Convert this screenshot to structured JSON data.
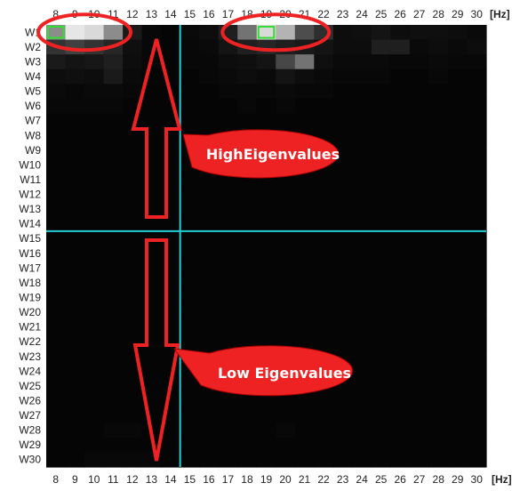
{
  "chart_data": {
    "type": "heatmap",
    "title": "",
    "x_unit": "[Hz]",
    "x_categories": [
      "8",
      "9",
      "10",
      "11",
      "12",
      "13",
      "14",
      "15",
      "16",
      "17",
      "18",
      "19",
      "20",
      "21",
      "22",
      "23",
      "24",
      "25",
      "26",
      "27",
      "28",
      "29",
      "30"
    ],
    "y_categories": [
      "W1",
      "W2",
      "W3",
      "W4",
      "W5",
      "W6",
      "W7",
      "W8",
      "W9",
      "W10",
      "W11",
      "W12",
      "W13",
      "W14",
      "W15",
      "W16",
      "W17",
      "W18",
      "W19",
      "W20",
      "W21",
      "W22",
      "W23",
      "W24",
      "W25",
      "W26",
      "W27",
      "W28",
      "W29",
      "W30"
    ],
    "value_range": [
      0,
      1
    ],
    "colormap": "black-to-white grayscale",
    "values": [
      [
        0.55,
        0.9,
        0.85,
        0.55,
        0.1,
        0.03,
        0.02,
        0.04,
        0.05,
        0.12,
        0.45,
        0.85,
        0.7,
        0.3,
        0.18,
        0.05,
        0.06,
        0.08,
        0.05,
        0.06,
        0.06,
        0.05,
        0.04
      ],
      [
        0.2,
        0.25,
        0.2,
        0.15,
        0.06,
        0.03,
        0.02,
        0.03,
        0.04,
        0.08,
        0.12,
        0.15,
        0.12,
        0.1,
        0.08,
        0.05,
        0.05,
        0.12,
        0.12,
        0.04,
        0.05,
        0.04,
        0.05
      ],
      [
        0.1,
        0.08,
        0.09,
        0.12,
        0.05,
        0.03,
        0.02,
        0.03,
        0.03,
        0.05,
        0.06,
        0.08,
        0.28,
        0.45,
        0.06,
        0.04,
        0.04,
        0.04,
        0.03,
        0.03,
        0.04,
        0.03,
        0.03
      ],
      [
        0.05,
        0.06,
        0.05,
        0.1,
        0.04,
        0.02,
        0.02,
        0.02,
        0.03,
        0.04,
        0.05,
        0.04,
        0.08,
        0.05,
        0.04,
        0.03,
        0.03,
        0.03,
        0.02,
        0.02,
        0.03,
        0.02,
        0.02
      ],
      [
        0.04,
        0.03,
        0.04,
        0.04,
        0.03,
        0.02,
        0.02,
        0.02,
        0.02,
        0.03,
        0.03,
        0.03,
        0.04,
        0.03,
        0.03,
        0.02,
        0.02,
        0.02,
        0.02,
        0.02,
        0.02,
        0.02,
        0.02
      ],
      [
        0.03,
        0.03,
        0.03,
        0.03,
        0.02,
        0.02,
        0.02,
        0.02,
        0.02,
        0.02,
        0.03,
        0.02,
        0.03,
        0.02,
        0.02,
        0.02,
        0.02,
        0.02,
        0.02,
        0.02,
        0.02,
        0.02,
        0.02
      ],
      [
        0.02,
        0.02,
        0.02,
        0.02,
        0.02,
        0.02,
        0.02,
        0.02,
        0.02,
        0.02,
        0.02,
        0.02,
        0.02,
        0.02,
        0.02,
        0.02,
        0.02,
        0.02,
        0.02,
        0.02,
        0.02,
        0.02,
        0.02
      ],
      [
        0.02,
        0.02,
        0.02,
        0.02,
        0.02,
        0.02,
        0.02,
        0.02,
        0.02,
        0.02,
        0.02,
        0.02,
        0.02,
        0.02,
        0.02,
        0.02,
        0.02,
        0.02,
        0.02,
        0.02,
        0.02,
        0.02,
        0.02
      ],
      [
        0.02,
        0.02,
        0.02,
        0.02,
        0.02,
        0.02,
        0.02,
        0.02,
        0.02,
        0.02,
        0.02,
        0.02,
        0.02,
        0.02,
        0.02,
        0.02,
        0.02,
        0.02,
        0.02,
        0.02,
        0.02,
        0.02,
        0.02
      ],
      [
        0.02,
        0.02,
        0.02,
        0.02,
        0.02,
        0.02,
        0.02,
        0.02,
        0.02,
        0.02,
        0.02,
        0.02,
        0.02,
        0.02,
        0.02,
        0.02,
        0.02,
        0.02,
        0.02,
        0.02,
        0.02,
        0.02,
        0.02
      ],
      [
        0.02,
        0.02,
        0.02,
        0.02,
        0.02,
        0.02,
        0.02,
        0.02,
        0.02,
        0.02,
        0.02,
        0.02,
        0.02,
        0.02,
        0.02,
        0.02,
        0.02,
        0.02,
        0.02,
        0.02,
        0.02,
        0.02,
        0.02
      ],
      [
        0.02,
        0.02,
        0.02,
        0.02,
        0.02,
        0.02,
        0.02,
        0.02,
        0.02,
        0.02,
        0.02,
        0.02,
        0.02,
        0.02,
        0.02,
        0.02,
        0.02,
        0.02,
        0.02,
        0.02,
        0.02,
        0.02,
        0.02
      ],
      [
        0.02,
        0.02,
        0.02,
        0.02,
        0.02,
        0.02,
        0.02,
        0.02,
        0.02,
        0.02,
        0.02,
        0.02,
        0.02,
        0.02,
        0.02,
        0.02,
        0.02,
        0.02,
        0.02,
        0.02,
        0.02,
        0.02,
        0.02
      ],
      [
        0.02,
        0.02,
        0.02,
        0.02,
        0.02,
        0.02,
        0.02,
        0.02,
        0.02,
        0.02,
        0.02,
        0.02,
        0.02,
        0.02,
        0.02,
        0.02,
        0.02,
        0.02,
        0.02,
        0.02,
        0.02,
        0.02,
        0.02
      ],
      [
        0.02,
        0.02,
        0.02,
        0.02,
        0.02,
        0.02,
        0.02,
        0.02,
        0.02,
        0.02,
        0.02,
        0.02,
        0.02,
        0.02,
        0.02,
        0.02,
        0.02,
        0.02,
        0.02,
        0.02,
        0.02,
        0.02,
        0.02
      ],
      [
        0.02,
        0.02,
        0.02,
        0.02,
        0.02,
        0.02,
        0.02,
        0.02,
        0.02,
        0.02,
        0.02,
        0.02,
        0.02,
        0.02,
        0.02,
        0.02,
        0.02,
        0.02,
        0.02,
        0.02,
        0.02,
        0.02,
        0.02
      ],
      [
        0.02,
        0.02,
        0.02,
        0.02,
        0.02,
        0.02,
        0.02,
        0.02,
        0.02,
        0.02,
        0.02,
        0.02,
        0.02,
        0.02,
        0.02,
        0.02,
        0.02,
        0.02,
        0.02,
        0.02,
        0.02,
        0.02,
        0.02
      ],
      [
        0.02,
        0.02,
        0.02,
        0.02,
        0.02,
        0.02,
        0.02,
        0.02,
        0.02,
        0.02,
        0.02,
        0.02,
        0.02,
        0.02,
        0.02,
        0.02,
        0.02,
        0.02,
        0.02,
        0.02,
        0.02,
        0.02,
        0.02
      ],
      [
        0.02,
        0.02,
        0.02,
        0.02,
        0.02,
        0.02,
        0.02,
        0.02,
        0.02,
        0.02,
        0.02,
        0.02,
        0.02,
        0.02,
        0.02,
        0.02,
        0.02,
        0.02,
        0.02,
        0.02,
        0.02,
        0.02,
        0.02
      ],
      [
        0.02,
        0.02,
        0.02,
        0.02,
        0.02,
        0.02,
        0.02,
        0.02,
        0.02,
        0.02,
        0.02,
        0.02,
        0.02,
        0.02,
        0.02,
        0.02,
        0.02,
        0.02,
        0.02,
        0.02,
        0.02,
        0.02,
        0.02
      ],
      [
        0.02,
        0.02,
        0.02,
        0.02,
        0.02,
        0.02,
        0.02,
        0.02,
        0.02,
        0.02,
        0.02,
        0.02,
        0.02,
        0.02,
        0.02,
        0.02,
        0.02,
        0.02,
        0.02,
        0.02,
        0.02,
        0.02,
        0.02
      ],
      [
        0.02,
        0.02,
        0.02,
        0.02,
        0.02,
        0.02,
        0.02,
        0.02,
        0.02,
        0.02,
        0.02,
        0.02,
        0.02,
        0.02,
        0.02,
        0.02,
        0.02,
        0.02,
        0.02,
        0.02,
        0.02,
        0.02,
        0.02
      ],
      [
        0.02,
        0.02,
        0.02,
        0.02,
        0.02,
        0.02,
        0.02,
        0.02,
        0.02,
        0.02,
        0.02,
        0.02,
        0.02,
        0.02,
        0.02,
        0.02,
        0.02,
        0.02,
        0.02,
        0.02,
        0.02,
        0.02,
        0.02
      ],
      [
        0.02,
        0.02,
        0.02,
        0.02,
        0.02,
        0.02,
        0.02,
        0.02,
        0.02,
        0.02,
        0.02,
        0.02,
        0.02,
        0.02,
        0.02,
        0.02,
        0.02,
        0.02,
        0.02,
        0.02,
        0.02,
        0.02,
        0.02
      ],
      [
        0.02,
        0.02,
        0.02,
        0.02,
        0.02,
        0.02,
        0.02,
        0.02,
        0.02,
        0.02,
        0.02,
        0.02,
        0.02,
        0.02,
        0.02,
        0.02,
        0.02,
        0.02,
        0.02,
        0.02,
        0.02,
        0.02,
        0.02
      ],
      [
        0.02,
        0.02,
        0.02,
        0.02,
        0.02,
        0.02,
        0.02,
        0.02,
        0.02,
        0.02,
        0.02,
        0.02,
        0.02,
        0.02,
        0.02,
        0.02,
        0.02,
        0.02,
        0.02,
        0.02,
        0.02,
        0.02,
        0.02
      ],
      [
        0.02,
        0.02,
        0.02,
        0.02,
        0.02,
        0.02,
        0.02,
        0.02,
        0.02,
        0.02,
        0.02,
        0.02,
        0.02,
        0.02,
        0.02,
        0.02,
        0.02,
        0.02,
        0.02,
        0.02,
        0.02,
        0.02,
        0.02
      ],
      [
        0.02,
        0.02,
        0.02,
        0.03,
        0.03,
        0.02,
        0.02,
        0.02,
        0.02,
        0.02,
        0.02,
        0.02,
        0.03,
        0.02,
        0.02,
        0.02,
        0.02,
        0.02,
        0.02,
        0.02,
        0.02,
        0.02,
        0.02
      ],
      [
        0.02,
        0.02,
        0.02,
        0.02,
        0.02,
        0.02,
        0.02,
        0.02,
        0.02,
        0.02,
        0.02,
        0.02,
        0.02,
        0.02,
        0.02,
        0.02,
        0.02,
        0.02,
        0.02,
        0.02,
        0.02,
        0.02,
        0.02
      ],
      [
        0.02,
        0.02,
        0.03,
        0.03,
        0.03,
        0.03,
        0.02,
        0.02,
        0.02,
        0.02,
        0.02,
        0.02,
        0.02,
        0.02,
        0.02,
        0.02,
        0.02,
        0.02,
        0.02,
        0.02,
        0.02,
        0.02,
        0.02
      ]
    ],
    "highlighted_cells": [
      {
        "y": "W1",
        "x": "8"
      },
      {
        "y": "W1",
        "x": "19"
      }
    ],
    "reference_lines": {
      "x": "14.5",
      "y": "W14.5"
    },
    "annotations": [
      {
        "text": "HighEigenvalues",
        "arrow": "up"
      },
      {
        "text": "Low Eigenvalues",
        "arrow": "down"
      }
    ],
    "colors": {
      "background": "#000000",
      "highlight_box": "#33dd33",
      "reference_line": "#22d0d6",
      "annotation": "#ee2222"
    }
  }
}
